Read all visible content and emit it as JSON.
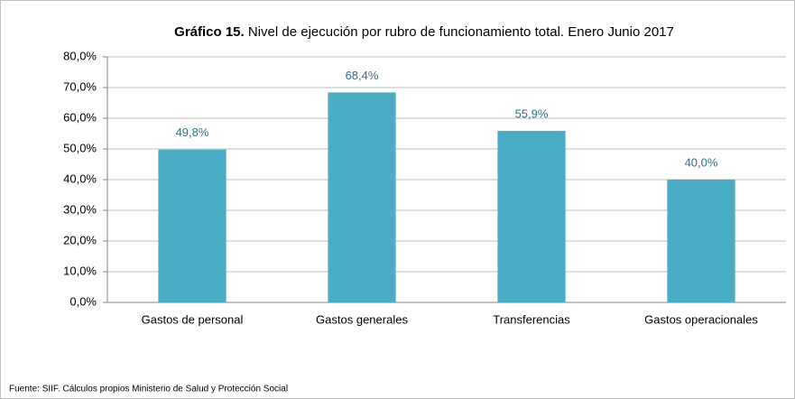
{
  "chart_data": {
    "type": "bar",
    "title_bold": "Gráfico 15.",
    "title": "Nivel de ejecución por rubro de funcionamiento total. Enero Junio 2017",
    "categories": [
      "Gastos de personal",
      "Gastos generales",
      "Transferencias",
      "Gastos operacionales"
    ],
    "values": [
      49.8,
      68.4,
      55.9,
      40.0
    ],
    "value_labels": [
      "49,8%",
      "68,4%",
      "55,9%",
      "40,0%"
    ],
    "color": "#4bacc6",
    "ylim": [
      0,
      80
    ],
    "yticks": [
      {
        "value": 0,
        "label": "0,0%"
      },
      {
        "value": 10,
        "label": "10,0%"
      },
      {
        "value": 20,
        "label": "20,0%"
      },
      {
        "value": 30,
        "label": "30,0%"
      },
      {
        "value": 40,
        "label": "40,0%"
      },
      {
        "value": 50,
        "label": "50,0%"
      },
      {
        "value": 60,
        "label": "60,0%"
      },
      {
        "value": 70,
        "label": "70,0%"
      },
      {
        "value": 80,
        "label": "80,0%"
      }
    ],
    "grid": true,
    "source": "Fuente: SIIF. Cálculos propios Ministerio de Salud y Protección Social"
  }
}
